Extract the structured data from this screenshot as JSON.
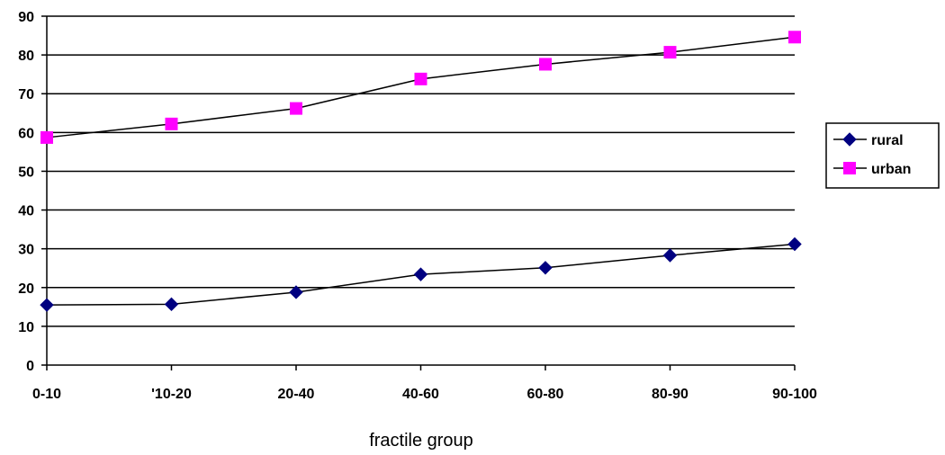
{
  "chart_data": {
    "type": "line",
    "title": "",
    "xlabel": "fractile group",
    "ylabel": "",
    "categories": [
      "0-10",
      "'10-20",
      "20-40",
      "40-60",
      "60-80",
      "80-90",
      "90-100"
    ],
    "ylim": [
      0,
      90
    ],
    "yticks": [
      0,
      10,
      20,
      30,
      40,
      50,
      60,
      70,
      80,
      90
    ],
    "grid": true,
    "legend_position": "right",
    "series": [
      {
        "name": "rural",
        "marker": "diamond",
        "color": "#000080",
        "values": [
          15.5,
          15.7,
          18.8,
          23.4,
          25.1,
          28.3,
          31.2
        ]
      },
      {
        "name": "urban",
        "marker": "square",
        "color": "#FF00FF",
        "values": [
          58.7,
          62.2,
          66.2,
          73.8,
          77.6,
          80.7,
          84.6
        ]
      }
    ]
  }
}
